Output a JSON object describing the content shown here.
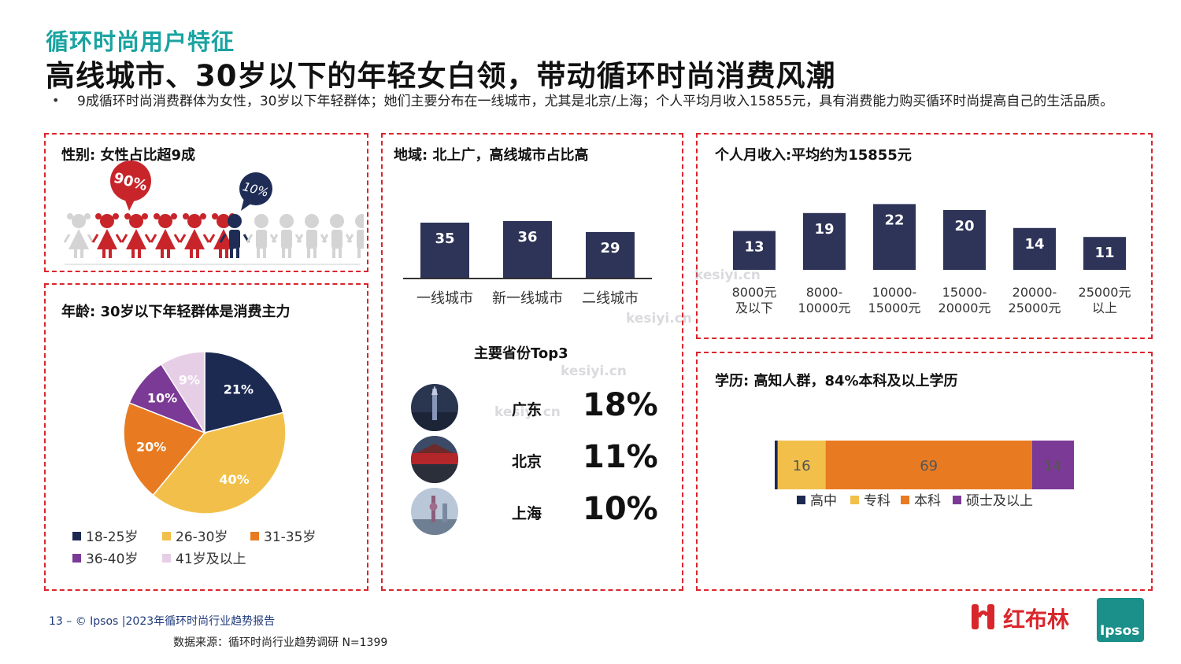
{
  "header": {
    "kicker": "循环时尚用户特征",
    "title": "高线城市、30岁以下的年轻女白领，带动循环时尚消费风潮",
    "bullet_marker": "•",
    "bullet": "9成循环时尚消费群体为女性，30岁以下年轻群体；她们主要分布在一线城市，尤其是北京/上海；个人平均月收入15855元，具有消费能力购买循环时尚提高自己的生活品质。"
  },
  "gender": {
    "title": "性别: 女性占比超9成",
    "female_label": "90%",
    "male_label": "10%",
    "female_color": "#c8252b",
    "male_color": "#1f2d56",
    "faded_color": "#d4d4d4"
  },
  "age": {
    "title": "年龄: 30岁以下年轻群体是消费主力"
  },
  "region": {
    "title": "地域: 北上广，高线城市占比高",
    "top3_title": "主要省份Top3",
    "provinces": [
      {
        "name": "广东",
        "pct": "18%"
      },
      {
        "name": "北京",
        "pct": "11%"
      },
      {
        "name": "上海",
        "pct": "10%"
      }
    ]
  },
  "income": {
    "title": "个人月收入:平均约为15855元"
  },
  "education": {
    "title": "学历: 高知人群，84%本科及以上学历"
  },
  "chart_data": [
    {
      "id": "age",
      "type": "pie",
      "categories": [
        "18-25岁",
        "26-30岁",
        "31-35岁",
        "36-40岁",
        "41岁及以上"
      ],
      "values": [
        21,
        40,
        20,
        10,
        9
      ],
      "labels": [
        "21%",
        "40%",
        "20%",
        "10%",
        "9%"
      ],
      "colors": [
        "#1c2a52",
        "#f2c04a",
        "#e87b22",
        "#7b3a96",
        "#e6cfe6"
      ],
      "legend": "bottom"
    },
    {
      "id": "region",
      "type": "bar",
      "categories": [
        "一线城市",
        "新一线城市",
        "二线城市"
      ],
      "values": [
        35,
        36,
        29
      ],
      "color": "#2e3358"
    },
    {
      "id": "income",
      "type": "bar",
      "categories": [
        [
          "8000元",
          "及以下"
        ],
        [
          "8000-",
          "10000元"
        ],
        [
          "10000-",
          "15000元"
        ],
        [
          "15000-",
          "20000元"
        ],
        [
          "20000-",
          "25000元"
        ],
        [
          "25000元",
          "以上"
        ]
      ],
      "values": [
        13,
        19,
        22,
        20,
        14,
        11
      ],
      "color": "#2e3358"
    },
    {
      "id": "education",
      "type": "bar",
      "orientation": "horizontal-stacked",
      "series": [
        {
          "name": "高中",
          "values": [
            1
          ],
          "label": "",
          "color": "#1c2a52"
        },
        {
          "name": "专科",
          "values": [
            16
          ],
          "label": "16",
          "color": "#f2c04a"
        },
        {
          "name": "本科",
          "values": [
            69
          ],
          "label": "69",
          "color": "#e87b22"
        },
        {
          "name": "硕士及以上",
          "values": [
            14
          ],
          "label": "14",
          "color": "#7b3a96"
        }
      ],
      "legend": "bottom"
    }
  ],
  "footer": {
    "page": "13 –  © Ipsos |2023年循环时尚行业趋势报告",
    "source": "数据来源：循环时尚行业趋势调研 N=1399",
    "brand": "红布林",
    "brand2": "Ipsos"
  },
  "watermark": "kesiyi.cn"
}
